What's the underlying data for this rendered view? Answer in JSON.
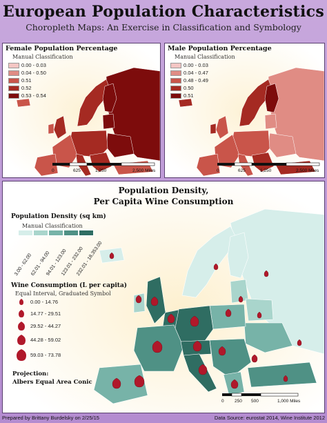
{
  "header": {
    "title": "European Population Characteristics",
    "subtitle": "Choropleth Maps: An Exercise in Classification and Symbology"
  },
  "female_map": {
    "title": "Female Population Percentage",
    "legend_subtitle": "Manual Classification",
    "classes": [
      {
        "label": "0.00 - 0.03",
        "color": "#f4c6c4"
      },
      {
        "label": "0.04 - 0.50",
        "color": "#e08c84"
      },
      {
        "label": "0.51",
        "color": "#c9554a"
      },
      {
        "label": "0.52",
        "color": "#a52a22"
      },
      {
        "label": "0.53 - 0.54",
        "color": "#7d0c0c"
      }
    ],
    "scale": {
      "t0": "0",
      "t1": "625",
      "t2": "1,250",
      "t3": "2,500 Miles"
    }
  },
  "male_map": {
    "title": "Male Population Percentage",
    "legend_subtitle": "Manual Classification",
    "classes": [
      {
        "label": "0.00 - 0.03",
        "color": "#f4c6c4"
      },
      {
        "label": "0.04 - 0.47",
        "color": "#e08c84"
      },
      {
        "label": "0.48 - 0.49",
        "color": "#c9554a"
      },
      {
        "label": "0.50",
        "color": "#a52a22"
      },
      {
        "label": "0.51",
        "color": "#7d0c0c"
      }
    ],
    "scale": {
      "t0": "0",
      "t1": "625",
      "t2": "1,250",
      "t3": "2,500 Miles"
    }
  },
  "density_map": {
    "title_line1": "Population Density,",
    "title_line2": "Per Capita Wine Consumption",
    "density_head": "Population Density (sq km)",
    "density_sub": "Manual Classification",
    "density_classes": [
      {
        "label": "3.00 - 62.00",
        "color": "#d6eeea"
      },
      {
        "label": "62.01 - 94.00",
        "color": "#a9d5cc"
      },
      {
        "label": "94.01 - 123.00",
        "color": "#77b3a8"
      },
      {
        "label": "123.01 - 232.00",
        "color": "#4f9185"
      },
      {
        "label": "232.01 - 18,353.00",
        "color": "#2f6d62"
      }
    ],
    "wine_head": "Wine Consumption (L per capita)",
    "wine_sub": "Equal Interval, Graduated Symbol",
    "wine_classes": [
      {
        "label": "0.00 - 14.76"
      },
      {
        "label": "14.77 - 29.51"
      },
      {
        "label": "29.52 - 44.27"
      },
      {
        "label": "44.28 - 59.02"
      },
      {
        "label": "59.03 - 73.78"
      }
    ],
    "projection_head": "Projection:",
    "projection_value": "Albers Equal Area Conic",
    "scale": {
      "t0": "0",
      "t1": "250",
      "t2": "500",
      "t3": "1,000 Miles"
    }
  },
  "footer": {
    "left": "Prepared by Brittany Burdelsky on 2/25/15",
    "right": "Data Source: eurostat 2014, Wine Institute 2012"
  }
}
